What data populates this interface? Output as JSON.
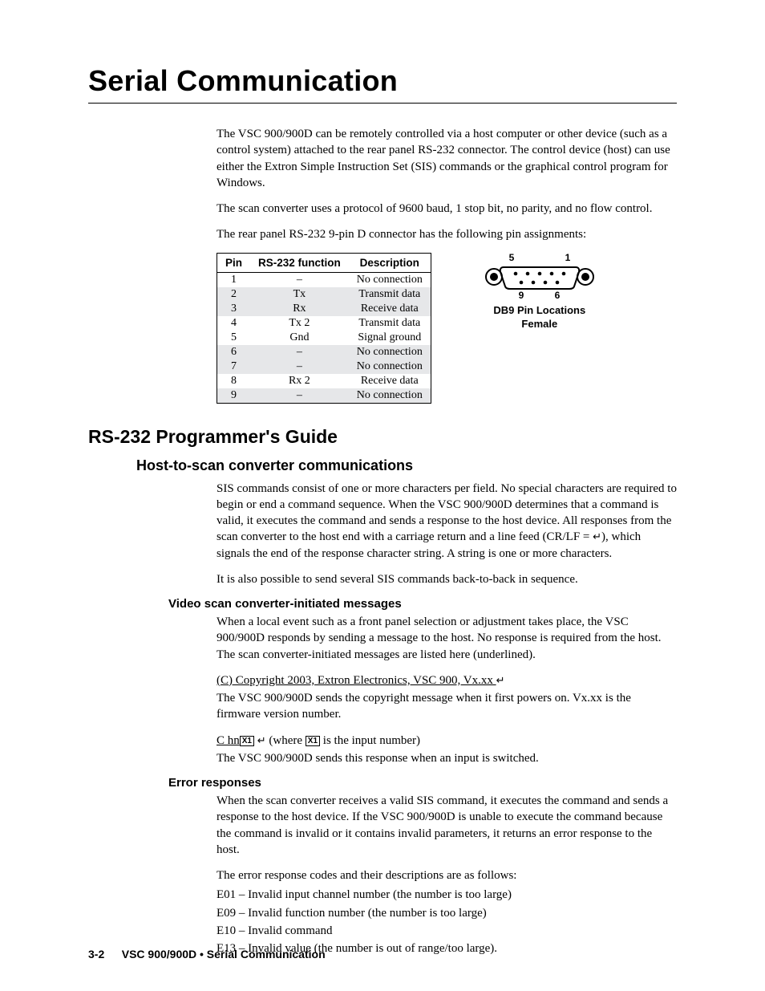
{
  "chapter_title": "Serial Communication",
  "intro": {
    "p1": "The VSC 900/900D can be remotely controlled via a host computer or other device (such as a control system) attached to the rear panel RS-232 connector. The control device (host) can use either the Extron Simple Instruction Set (SIS) commands or the graphical control program for Windows.",
    "p2": "The scan converter uses a protocol of 9600 baud, 1 stop bit, no parity, and no flow control.",
    "p3": "The rear panel RS-232 9-pin D connector has the following pin assignments:"
  },
  "pin_table": {
    "headers": [
      "Pin",
      "RS-232 function",
      "Description"
    ],
    "rows": [
      {
        "pin": "1",
        "func": "–",
        "desc": "No connection",
        "shaded": false
      },
      {
        "pin": "2",
        "func": "Tx",
        "desc": "Transmit data",
        "shaded": true
      },
      {
        "pin": "3",
        "func": "Rx",
        "desc": "Receive data",
        "shaded": true
      },
      {
        "pin": "4",
        "func": "Tx 2",
        "desc": "Transmit data",
        "shaded": false
      },
      {
        "pin": "5",
        "func": "Gnd",
        "desc": "Signal ground",
        "shaded": false
      },
      {
        "pin": "6",
        "func": "–",
        "desc": "No connection",
        "shaded": true
      },
      {
        "pin": "7",
        "func": "–",
        "desc": "No connection",
        "shaded": true
      },
      {
        "pin": "8",
        "func": "Rx 2",
        "desc": "Receive data",
        "shaded": false
      },
      {
        "pin": "9",
        "func": "–",
        "desc": "No connection",
        "shaded": true
      }
    ]
  },
  "db9": {
    "labels": {
      "tl": "5",
      "tr": "1",
      "bl": "9",
      "br": "6"
    },
    "caption1": "DB9 Pin Locations",
    "caption2": "Female"
  },
  "section_title": "RS-232 Programmer's Guide",
  "host_comm": {
    "title": "Host-to-scan converter communications",
    "p1a": "SIS commands consist of one or more characters per field.  No special characters are required to begin or end a command sequence.  When the VSC 900/900D determines that a command is valid, it executes the command and sends a response to the host device.  All responses from the scan converter to the host end with a carriage return and a line feed (CR/LF = ",
    "p1b": "), which signals the end of the response character string.  A string is one or more characters.",
    "p2": "It is also possible to send several SIS commands back-to-back in sequence."
  },
  "vsc_init": {
    "title": "Video scan converter-initiated messages",
    "p1": "When a local event such as a front panel selection or adjustment takes place, the VSC 900/900D responds by sending a message to the host.  No response is required from the host.  The scan converter-initiated messages are listed here (underlined).",
    "copyright_u": "(C) Copyright 2003, Extron Electronics, VSC 900, Vx.xx  ",
    "copyright_after": "The VSC 900/900D sends the copyright message when it first powers on.  Vx.xx is the firmware version number.",
    "chn_u": "C hn",
    "chn_after1": "  (where ",
    "chn_after2": " is the input number)",
    "chn_line2": "The VSC 900/900D sends this response when an input is switched."
  },
  "error": {
    "title": "Error responses",
    "p1": "When the scan converter receives a valid SIS command, it executes the command and sends a response to the host device.  If the VSC 900/900D is unable to execute the command because the command is invalid or it contains invalid parameters, it returns an error response to the host.",
    "p2": "The error response codes and their descriptions are as follows:",
    "e01": "E01 – Invalid input channel number (the number is too large)",
    "e09": "E09 – Invalid function number (the number is too large)",
    "e10": "E10 – Invalid command",
    "e13": "E13 – Invalid value (the number is out of range/too large)."
  },
  "footer": {
    "pagenum": "3-2",
    "chapter": "VSC 900/900D • Serial Communication"
  },
  "symbols": {
    "return": "↵",
    "xbox": "X1"
  },
  "colors": {
    "text": "#000000",
    "background": "#ffffff",
    "shade": "#e6e7e9"
  }
}
